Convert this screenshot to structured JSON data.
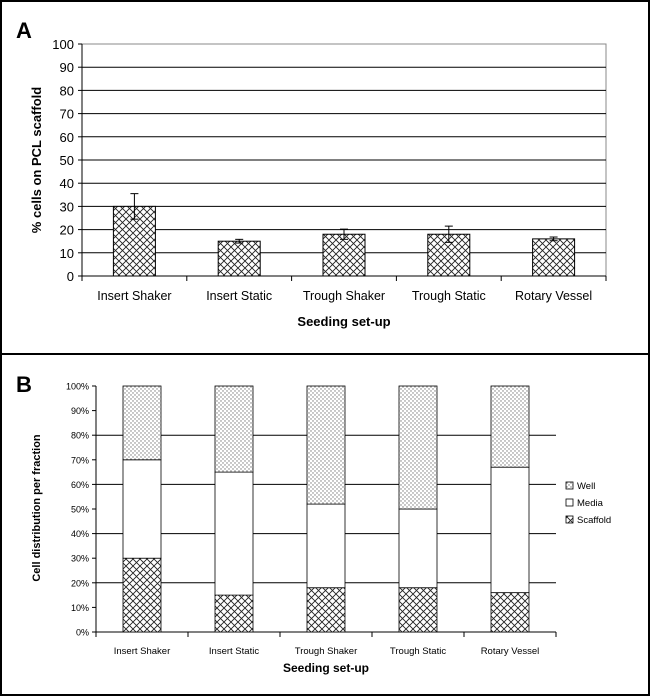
{
  "chart_data": [
    {
      "panel": "A",
      "type": "bar",
      "categories": [
        "Insert Shaker",
        "Insert Static",
        "Trough Shaker",
        "Trough Static",
        "Rotary Vessel"
      ],
      "values": [
        30,
        15,
        18,
        18,
        16
      ],
      "errors": [
        5.5,
        0.8,
        2.2,
        3.5,
        0.8
      ],
      "xlabel": "Seeding set-up",
      "ylabel": "% cells on PCL scaffold",
      "ylim": [
        0,
        100
      ],
      "yticks": [
        0,
        10,
        20,
        30,
        40,
        50,
        60,
        70,
        80,
        90,
        100
      ],
      "grid": "y-major"
    },
    {
      "panel": "B",
      "type": "bar",
      "stacked": true,
      "normalized": true,
      "categories": [
        "Insert Shaker",
        "Insert Static",
        "Trough Shaker",
        "Trough Static",
        "Rotary Vessel"
      ],
      "series": [
        {
          "name": "Scaffold",
          "values": [
            30,
            15,
            18,
            18,
            16
          ]
        },
        {
          "name": "Media",
          "values": [
            40,
            50,
            34,
            32,
            51
          ]
        },
        {
          "name": "Well",
          "values": [
            30,
            35,
            48,
            50,
            33
          ]
        }
      ],
      "xlabel": "Seeding set-up",
      "ylabel": "Cell distribution per fraction",
      "ylim": [
        0,
        100
      ],
      "yticks": [
        "0%",
        "10%",
        "20%",
        "30%",
        "40%",
        "50%",
        "60%",
        "70%",
        "80%",
        "90%",
        "100%"
      ],
      "legend": "right",
      "legend_order": [
        "Well",
        "Media",
        "Scaffold"
      ],
      "grid": "y-major"
    }
  ]
}
